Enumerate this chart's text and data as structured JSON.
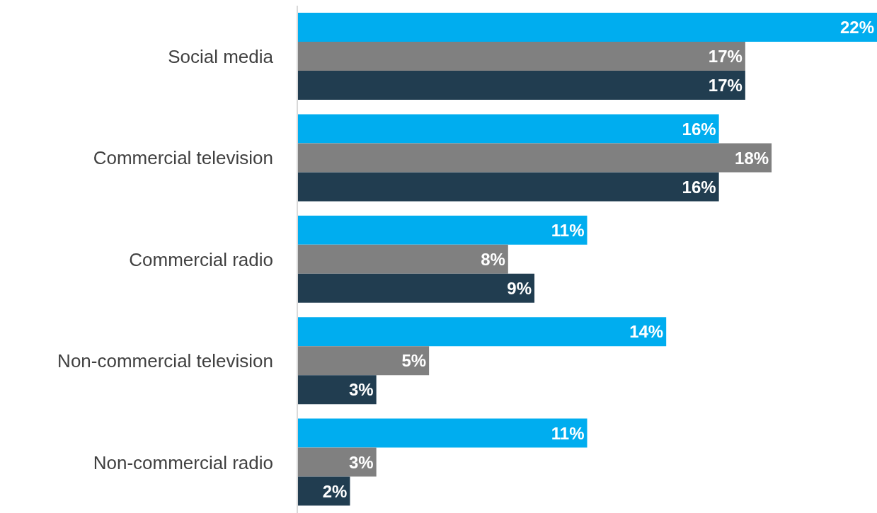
{
  "chart_data": {
    "type": "bar",
    "orientation": "horizontal",
    "categories": [
      "Social media",
      "Commercial television",
      "Commercial radio",
      "Non-commercial television",
      "Non-commercial radio"
    ],
    "series": [
      {
        "color": "#00adef",
        "values": [
          22,
          16,
          11,
          14,
          11
        ],
        "value_labels": [
          "22%",
          "16%",
          "11%",
          "14%",
          "11%"
        ]
      },
      {
        "color": "#808080",
        "values": [
          17,
          18,
          8,
          5,
          3
        ],
        "value_labels": [
          "17%",
          "18%",
          "8%",
          "5%",
          "3%"
        ]
      },
      {
        "color": "#213d50",
        "values": [
          17,
          16,
          9,
          3,
          2
        ],
        "value_labels": [
          "17%",
          "16%",
          "9%",
          "3%",
          "2%"
        ]
      }
    ],
    "grid": false,
    "legend": false
  }
}
